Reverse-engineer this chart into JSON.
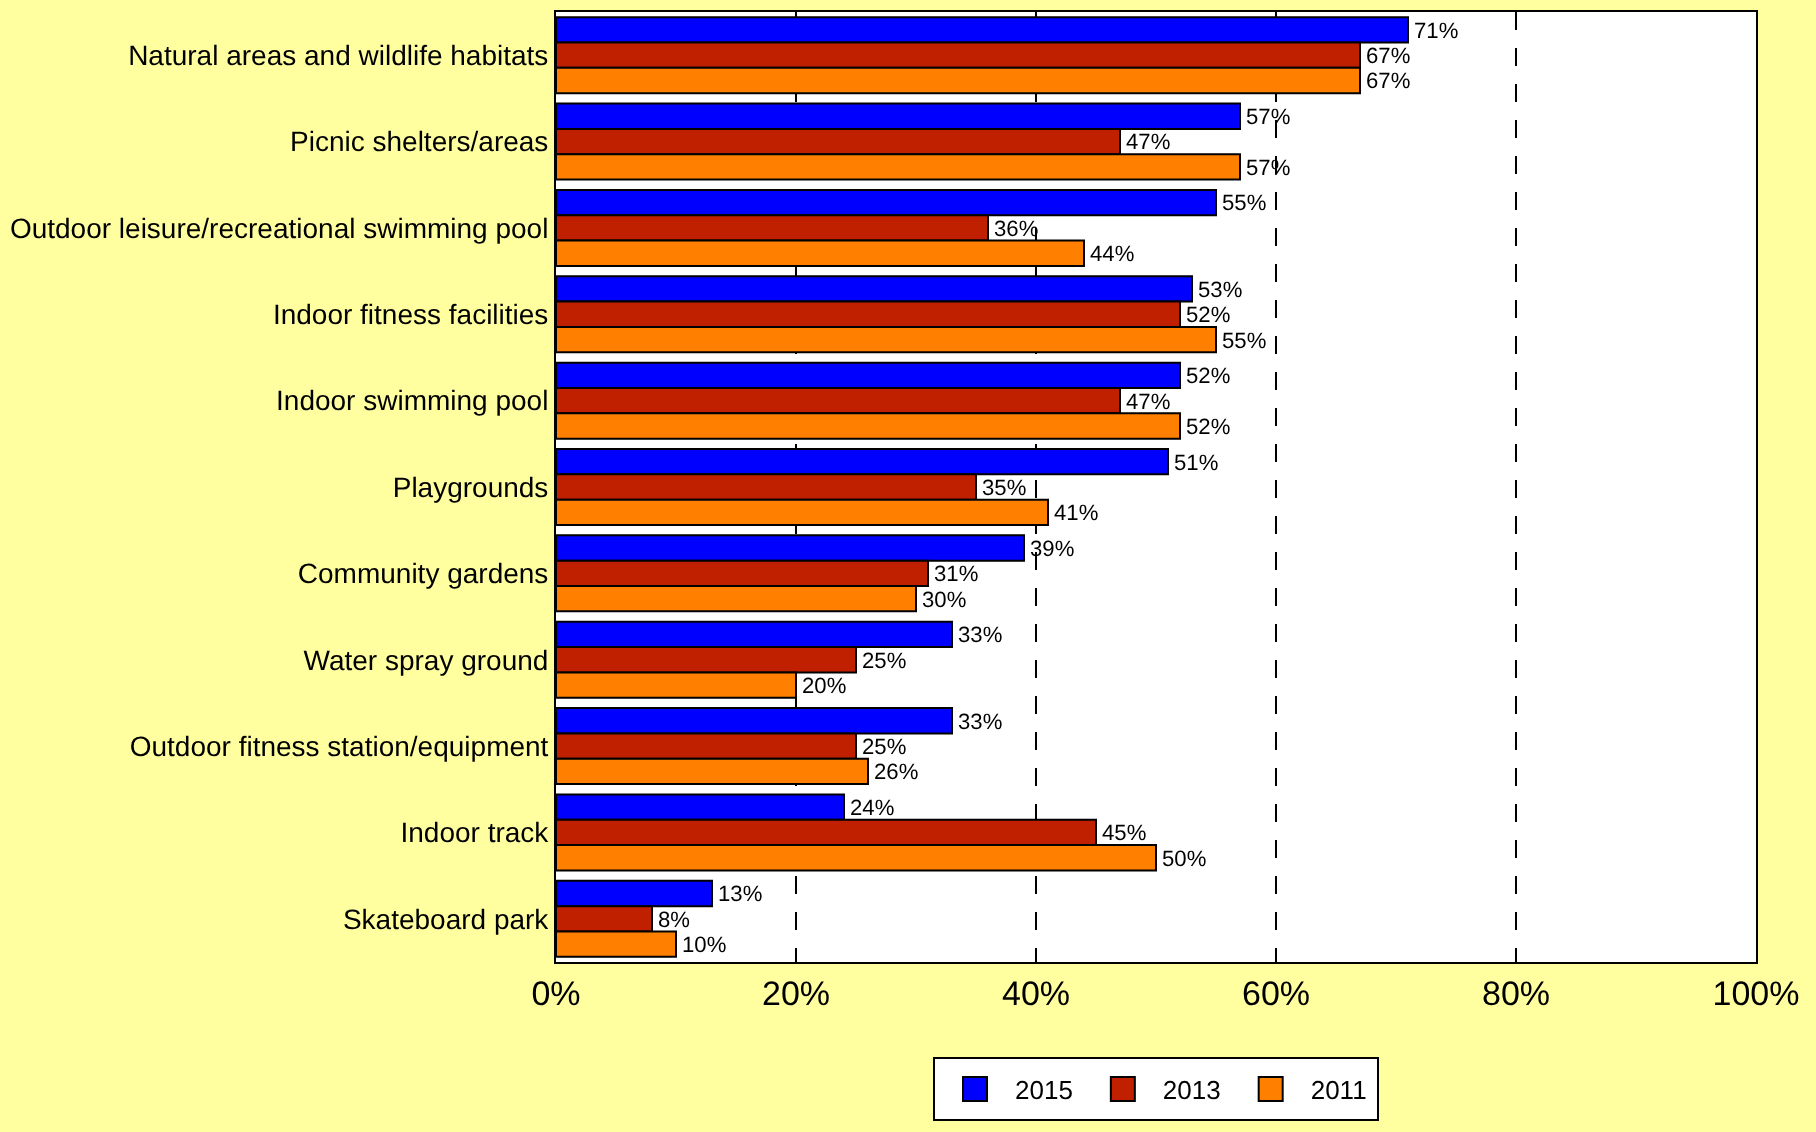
{
  "chart_data": {
    "type": "bar",
    "orientation": "horizontal",
    "legend": "bottom",
    "grid": "x",
    "categories": [
      "Natural areas and wildlife habitats",
      "Picnic shelters/areas",
      "Outdoor leisure/recreational swimming pool",
      "Indoor fitness facilities",
      "Indoor swimming pool",
      "Playgrounds",
      "Community gardens",
      "Water spray ground",
      "Outdoor fitness station/equipment",
      "Indoor track",
      "Skateboard park"
    ],
    "xlim": [
      0,
      100
    ],
    "xticks": [
      {
        "value": 0,
        "label": "0%"
      },
      {
        "value": 20,
        "label": "20%"
      },
      {
        "value": 40,
        "label": "40%"
      },
      {
        "value": 60,
        "label": "60%"
      },
      {
        "value": 80,
        "label": "80%"
      },
      {
        "value": 100,
        "label": "100%"
      }
    ],
    "series": [
      {
        "name": "2015",
        "color": "#0000ff",
        "values": [
          71,
          57,
          55,
          53,
          52,
          51,
          39,
          33,
          33,
          24,
          13
        ],
        "value_labels": [
          "71%",
          "57%",
          "55%",
          "53%",
          "52%",
          "51%",
          "39%",
          "33%",
          "33%",
          "24%",
          "13%"
        ]
      },
      {
        "name": "2013",
        "color": "#c02000",
        "values": [
          67,
          47,
          36,
          52,
          47,
          35,
          31,
          25,
          25,
          45,
          8
        ],
        "value_labels": [
          "67%",
          "47%",
          "36%",
          "52%",
          "47%",
          "35%",
          "31%",
          "25%",
          "25%",
          "45%",
          "8%"
        ]
      },
      {
        "name": "2011",
        "color": "#ff8000",
        "values": [
          67,
          57,
          44,
          55,
          52,
          41,
          30,
          20,
          26,
          50,
          10
        ],
        "value_labels": [
          "67%",
          "57%",
          "44%",
          "55%",
          "52%",
          "41%",
          "30%",
          "20%",
          "26%",
          "50%",
          "10%"
        ]
      }
    ]
  }
}
